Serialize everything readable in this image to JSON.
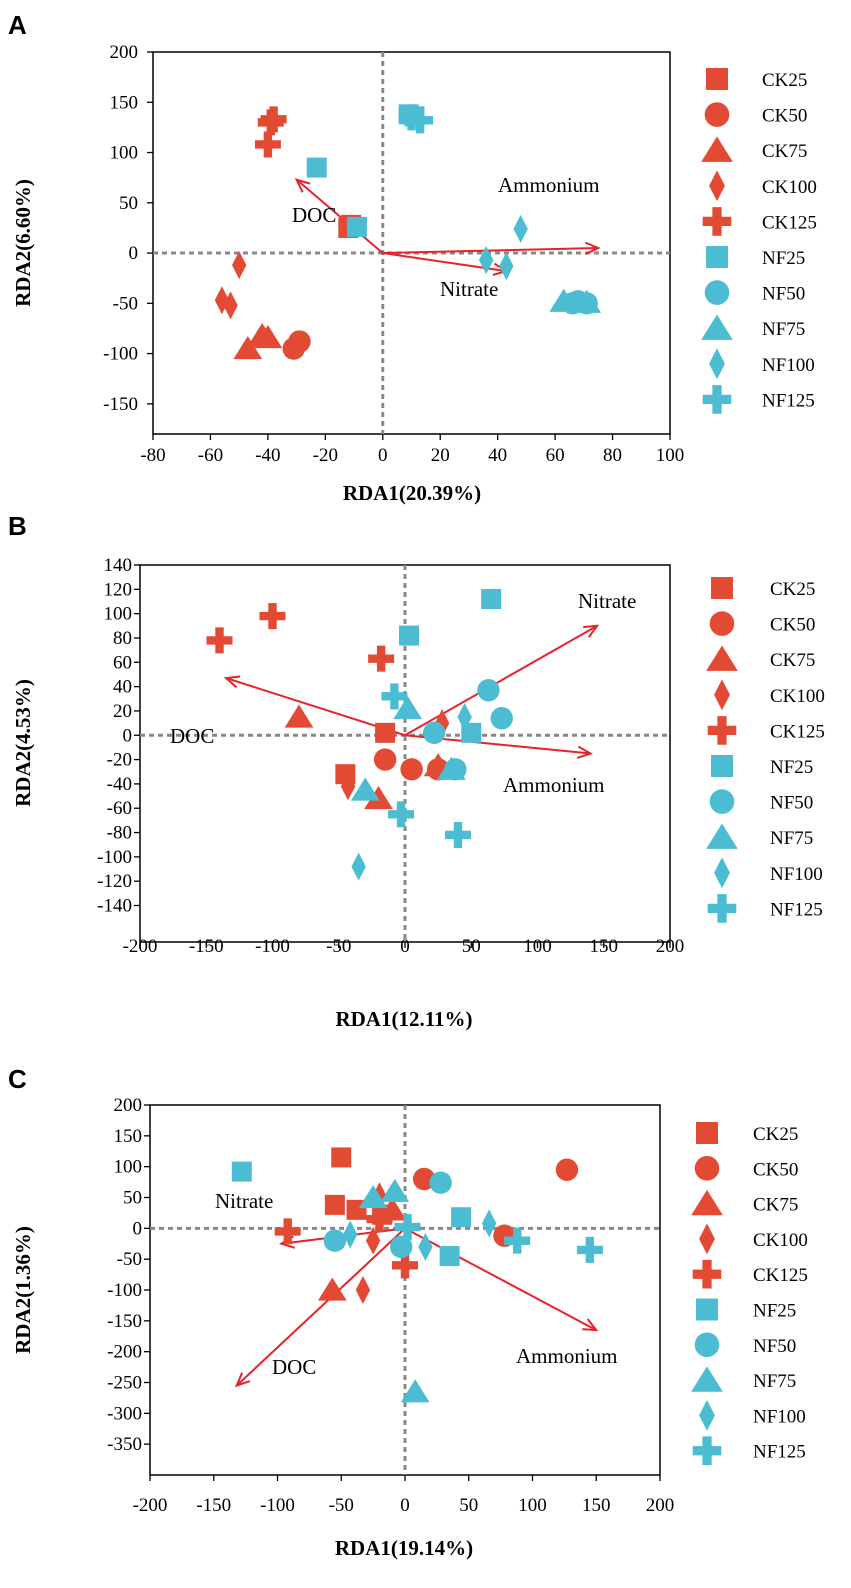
{
  "colors": {
    "CK": "#e34a33",
    "NF": "#4bbcd1",
    "arrow": "#e8212a",
    "zero_line": "#888888"
  },
  "legend_entries": [
    {
      "name": "CK25",
      "group": "CK",
      "shape": "square"
    },
    {
      "name": "CK50",
      "group": "CK",
      "shape": "circle"
    },
    {
      "name": "CK75",
      "group": "CK",
      "shape": "triangle"
    },
    {
      "name": "CK100",
      "group": "CK",
      "shape": "diamond"
    },
    {
      "name": "CK125",
      "group": "CK",
      "shape": "plus"
    },
    {
      "name": "NF25",
      "group": "NF",
      "shape": "square"
    },
    {
      "name": "NF50",
      "group": "NF",
      "shape": "circle"
    },
    {
      "name": "NF75",
      "group": "NF",
      "shape": "triangle"
    },
    {
      "name": "NF100",
      "group": "NF",
      "shape": "diamond"
    },
    {
      "name": "NF125",
      "group": "NF",
      "shape": "plus"
    }
  ],
  "chart_data": [
    {
      "panel": "A",
      "type": "scatter",
      "xlabel": "RDA1(20.39%)",
      "ylabel": "RDA2(6.60%)",
      "xlim": [
        -80,
        100
      ],
      "ylim": [
        -180,
        200
      ],
      "xticks": [
        -80,
        -60,
        -40,
        -20,
        0,
        20,
        40,
        60,
        80,
        100
      ],
      "yticks": [
        200,
        150,
        100,
        50,
        0,
        -50,
        -100,
        -150
      ],
      "series": [
        {
          "name": "CK25",
          "points": [
            [
              -12,
              25
            ],
            [
              -11,
              28
            ]
          ]
        },
        {
          "name": "CK50",
          "points": [
            [
              -31,
              -95
            ],
            [
              -29,
              -88
            ]
          ]
        },
        {
          "name": "CK75",
          "points": [
            [
              -47,
              -95
            ],
            [
              -42,
              -82
            ],
            [
              -40,
              -84
            ]
          ]
        },
        {
          "name": "CK100",
          "points": [
            [
              -56,
              -47
            ],
            [
              -53,
              -52
            ],
            [
              -50,
              -12
            ]
          ]
        },
        {
          "name": "CK125",
          "points": [
            [
              -40,
              108
            ],
            [
              -39,
              130
            ],
            [
              -38,
              133
            ]
          ]
        },
        {
          "name": "NF25",
          "points": [
            [
              -23,
              85
            ],
            [
              -9,
              26
            ],
            [
              9,
              138
            ],
            [
              11,
              136
            ]
          ]
        },
        {
          "name": "NF50",
          "points": [
            [
              66,
              -50
            ],
            [
              68,
              -48
            ],
            [
              71,
              -50
            ]
          ]
        },
        {
          "name": "NF75",
          "points": [
            [
              63,
              -48
            ],
            [
              71,
              -49
            ]
          ]
        },
        {
          "name": "NF100",
          "points": [
            [
              36,
              -7
            ],
            [
              43,
              -13
            ],
            [
              48,
              24
            ]
          ]
        },
        {
          "name": "NF125",
          "points": [
            [
              10,
              135
            ],
            [
              13,
              132
            ]
          ]
        }
      ],
      "arrows": [
        {
          "label": "DOC",
          "x": -30,
          "y": 73
        },
        {
          "label": "Ammonium",
          "x": 75,
          "y": 5
        },
        {
          "label": "Nitrate",
          "x": 43,
          "y": -18
        }
      ]
    },
    {
      "panel": "B",
      "type": "scatter",
      "xlabel": "RDA1(12.11%)",
      "ylabel": "RDA2(4.53%)",
      "xlim": [
        -200,
        200
      ],
      "ylim": [
        -170,
        140
      ],
      "xticks": [
        -200,
        -150,
        -100,
        -50,
        0,
        50,
        100,
        150,
        200
      ],
      "yticks": [
        140,
        120,
        100,
        80,
        60,
        40,
        20,
        0,
        -20,
        -40,
        -60,
        -80,
        -100,
        -120,
        -140
      ],
      "series": [
        {
          "name": "CK25",
          "points": [
            [
              -45,
              -32
            ],
            [
              -15,
              2
            ]
          ]
        },
        {
          "name": "CK50",
          "points": [
            [
              -15,
              -20
            ],
            [
              5,
              -28
            ],
            [
              25,
              -28
            ]
          ]
        },
        {
          "name": "CK75",
          "points": [
            [
              -80,
              15
            ],
            [
              -20,
              -52
            ],
            [
              25,
              -25
            ]
          ]
        },
        {
          "name": "CK100",
          "points": [
            [
              -43,
              -42
            ],
            [
              28,
              10
            ]
          ]
        },
        {
          "name": "CK125",
          "points": [
            [
              -140,
              78
            ],
            [
              -100,
              98
            ],
            [
              -18,
              63
            ]
          ]
        },
        {
          "name": "NF25",
          "points": [
            [
              3,
              82
            ],
            [
              50,
              2
            ],
            [
              65,
              112
            ]
          ]
        },
        {
          "name": "NF50",
          "points": [
            [
              22,
              2
            ],
            [
              38,
              -28
            ],
            [
              63,
              37
            ],
            [
              73,
              14
            ]
          ]
        },
        {
          "name": "NF75",
          "points": [
            [
              -30,
              -45
            ],
            [
              2,
              22
            ],
            [
              35,
              -28
            ]
          ]
        },
        {
          "name": "NF100",
          "points": [
            [
              -35,
              -108
            ],
            [
              45,
              15
            ]
          ]
        },
        {
          "name": "NF125",
          "points": [
            [
              -8,
              32
            ],
            [
              -3,
              -65
            ],
            [
              40,
              -82
            ]
          ]
        }
      ],
      "arrows": [
        {
          "label": "DOC",
          "x": -135,
          "y": 47
        },
        {
          "label": "Nitrate",
          "x": 145,
          "y": 90
        },
        {
          "label": "Ammonium",
          "x": 140,
          "y": -15
        }
      ]
    },
    {
      "panel": "C",
      "type": "scatter",
      "xlabel": "RDA1(19.14%)",
      "ylabel": "RDA2(1.36%)",
      "xlim": [
        -200,
        200
      ],
      "ylim": [
        -400,
        200
      ],
      "xticks": [
        -200,
        -150,
        -100,
        -50,
        0,
        50,
        100,
        150,
        200
      ],
      "yticks": [
        200,
        150,
        100,
        50,
        0,
        -50,
        -100,
        -150,
        -200,
        -250,
        -300,
        -350
      ],
      "series": [
        {
          "name": "CK25",
          "points": [
            [
              -50,
              115
            ],
            [
              -55,
              38
            ],
            [
              -38,
              30
            ],
            [
              -18,
              22
            ]
          ]
        },
        {
          "name": "CK50",
          "points": [
            [
              15,
              80
            ],
            [
              78,
              -12
            ],
            [
              127,
              95
            ]
          ]
        },
        {
          "name": "CK75",
          "points": [
            [
              -57,
              -100
            ],
            [
              -10,
              30
            ]
          ]
        },
        {
          "name": "CK100",
          "points": [
            [
              -33,
              -100
            ],
            [
              -25,
              -20
            ],
            [
              -20,
              52
            ]
          ]
        },
        {
          "name": "CK125",
          "points": [
            [
              -92,
              -5
            ],
            [
              -20,
              15
            ],
            [
              0,
              -60
            ]
          ]
        },
        {
          "name": "NF25",
          "points": [
            [
              -128,
              92
            ],
            [
              35,
              -45
            ],
            [
              44,
              18
            ]
          ]
        },
        {
          "name": "NF50",
          "points": [
            [
              -55,
              -20
            ],
            [
              -3,
              -30
            ],
            [
              28,
              74
            ]
          ]
        },
        {
          "name": "NF75",
          "points": [
            [
              -25,
              50
            ],
            [
              -8,
              60
            ],
            [
              8,
              -265
            ]
          ]
        },
        {
          "name": "NF100",
          "points": [
            [
              -43,
              -10
            ],
            [
              16,
              -30
            ],
            [
              66,
              8
            ]
          ]
        },
        {
          "name": "NF125",
          "points": [
            [
              2,
              2
            ],
            [
              88,
              -20
            ],
            [
              145,
              -35
            ]
          ]
        }
      ],
      "arrows": [
        {
          "label": "Nitrate",
          "x": -97,
          "y": -25
        },
        {
          "label": "DOC",
          "x": -132,
          "y": -255
        },
        {
          "label": "Ammonium",
          "x": 150,
          "y": -165
        }
      ]
    }
  ]
}
